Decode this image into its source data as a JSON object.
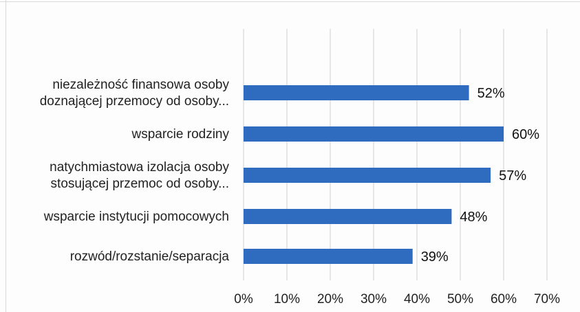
{
  "chart_data": {
    "type": "bar",
    "orientation": "horizontal",
    "categories": [
      [
        "niezależność finansowa osoby",
        "doznającej przemocy od osoby..."
      ],
      [
        "wsparcie rodziny"
      ],
      [
        "natychmiastowa izolacja osoby",
        "stosującej przemoc od osoby..."
      ],
      [
        "wsparcie instytucji pomocowych"
      ],
      [
        "rozwód/rozstanie/separacja"
      ]
    ],
    "values": [
      52,
      60,
      57,
      48,
      39
    ],
    "value_labels": [
      "52%",
      "60%",
      "57%",
      "48%",
      "39%"
    ],
    "x_ticks": [
      "0%",
      "10%",
      "20%",
      "30%",
      "40%",
      "50%",
      "60%",
      "70%"
    ],
    "xlim": [
      0,
      70
    ],
    "grid": true,
    "legend": "none",
    "bar_color": "#2f6bbf",
    "grid_color": "#cfcfcf"
  }
}
